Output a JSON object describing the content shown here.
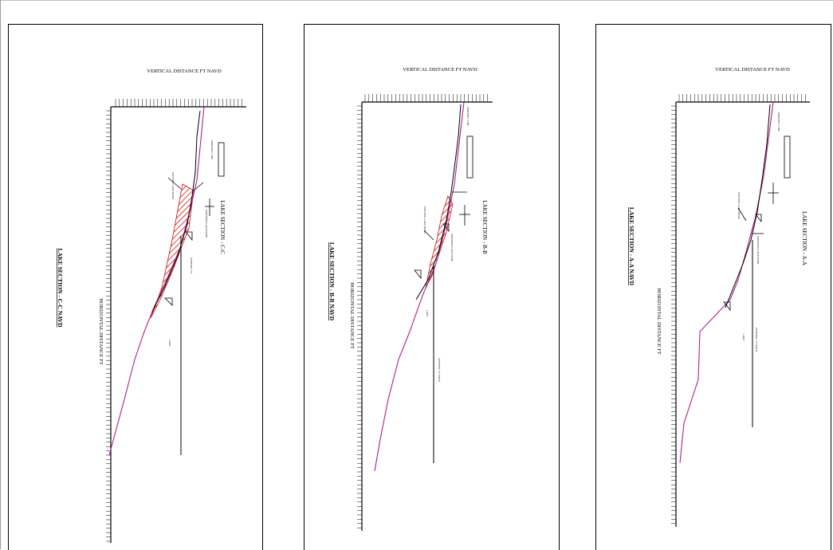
{
  "sheets": [
    {
      "id": "c",
      "section_title": "LAKE SECTION - C-C  NAVD",
      "section_label": "LAKE SECTION - C-C",
      "vertical_axis_label": "VERTICAL DISTANCE  FT  NAVD",
      "horizontal_axis_label": "HORIZONTAL DISTANCE  FT",
      "small_labels": [
        "PROPERTY LINE",
        "EXISTING LAKE BANK",
        "PROPOSED LAKE BANK",
        "CONTROL 7.0'",
        "LAKE"
      ]
    },
    {
      "id": "b",
      "section_title": "LAKE SECTION - B-B  NAVD",
      "section_label": "LAKE SECTION - B-B",
      "vertical_axis_label": "VERTICAL DISTANCE  FT  NAVD",
      "horizontal_axis_label": "HORIZONTAL DISTANCE  FT",
      "small_labels": [
        "PROPERTY LINE",
        "EXISTING LAKE BANK",
        "PROPOSED LAKE BANK",
        "CONTROL 7.0' NAVD",
        "LAKE"
      ]
    },
    {
      "id": "a",
      "section_title": "LAKE SECTION - A-A  NAVD",
      "section_label": "LAKE SECTION - A-A",
      "vertical_axis_label": "VERTICAL DISTANCE  FT  NAVD",
      "horizontal_axis_label": "HORIZONTAL DISTANCE  FT",
      "small_labels": [
        "PROPERTY LINE",
        "EXISTING LAKE BANK",
        "PROPOSED LAKE BANK",
        "CONTROL 7.0' NAVD",
        "LAKE"
      ]
    }
  ],
  "colors": {
    "profile_line": "#b0208a",
    "hatch": "#cc1111",
    "ink": "#000000"
  }
}
